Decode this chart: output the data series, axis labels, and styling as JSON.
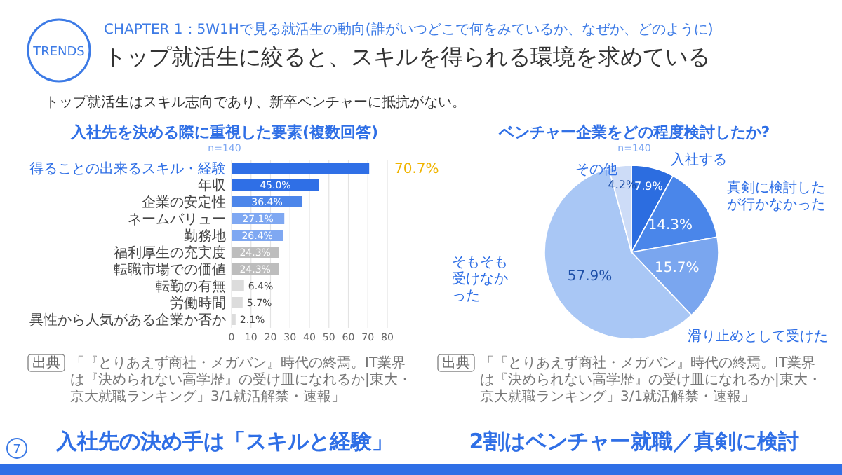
{
  "chart_data": [
    {
      "type": "other",
      "title": "トップ就活生に絞ると、スキルを得られる環境を求めている",
      "subtitle": "CHAPTER 1：5W1Hで見る就活生の動向(誰がいつどこで何をみているか、なぜか、どのように)",
      "annotations": [
        "TRENDS",
        "トップ就活生はスキル志向であり、新卒ベンチャーに抵抗がない。",
        "7"
      ]
    },
    {
      "type": "bar",
      "orientation": "horizontal",
      "title": "入社先を決める際に重視した要素(複数回答)",
      "subtitle": "n=140",
      "categories": [
        "得ることの出来るスキル・経験",
        "年収",
        "企業の安定性",
        "ネームバリュー",
        "勤務地",
        "福利厚生の充実度",
        "転職市場での価値",
        "転勤の有無",
        "労働時間",
        "異性から人気がある企業か否か"
      ],
      "values": [
        70.7,
        45.0,
        36.4,
        27.1,
        26.4,
        24.3,
        24.3,
        6.4,
        5.7,
        2.1
      ],
      "value_labels": [
        "70.7%",
        "45.0%",
        "36.4%",
        "27.1%",
        "26.4%",
        "24.3%",
        "24.3%",
        "6.4%",
        "5.7%",
        "2.1%"
      ],
      "colors": [
        "#2f6fe6",
        "#2f6fe6",
        "#4d86ea",
        "#7fa8f2",
        "#7fa8f2",
        "#bdbdbd",
        "#bdbdbd",
        "#dcdcdc",
        "#dcdcdc",
        "#dcdcdc"
      ],
      "xlim": [
        0,
        80
      ],
      "xticks": [
        0,
        10,
        20,
        30,
        40,
        50,
        60,
        70,
        80
      ],
      "grid": "x",
      "annotations": [
        "出典",
        "「『とりあえず商社・メガバン』時代の終焉。IT業界は『決められない高学歴』の受け皿になれるか|東大・京大就職ランキング」3/1就活解禁・速報」",
        "入社先の決め手は「スキルと経験」"
      ]
    },
    {
      "type": "pie",
      "title": "ベンチャー企業をどの程度検討したか?",
      "subtitle": "n=140",
      "categories": [
        "入社する",
        "真剣に検討したが行かなかった",
        "滑り止めとして受けた",
        "そもそも受けなかった",
        "その他"
      ],
      "values": [
        7.9,
        14.3,
        15.7,
        57.9,
        4.2
      ],
      "value_labels": [
        "7.9%",
        "14.3%",
        "15.7%",
        "57.9%",
        "4.2%"
      ],
      "colors": [
        "#2c6de0",
        "#4a86ea",
        "#7aa6ef",
        "#a9c7f5",
        "#cddcf7"
      ],
      "annotations": [
        "出典",
        "「『とりあえず商社・メガバン』時代の終焉。IT業界は『決められない高学歴』の受け皿になれるか|東大・京大就職ランキング」3/1就活解禁・速報」",
        "2割はベンチャー就職／真剣に検討"
      ]
    }
  ]
}
